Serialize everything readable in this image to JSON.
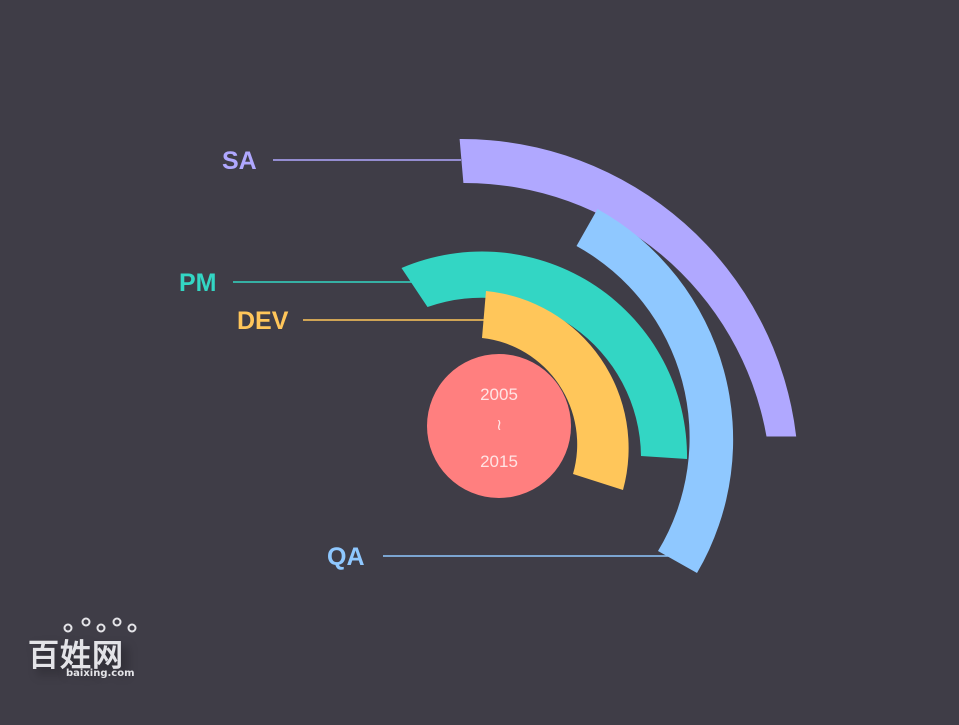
{
  "colors": {
    "background": "#3f3d47",
    "sa": "#b0a8ff",
    "pm": "#33d6c4",
    "dev": "#ffc65a",
    "qa": "#8fc8ff",
    "center": "#ff7f7f"
  },
  "center": {
    "start_year": "2005",
    "separator": "~",
    "end_year": "2015"
  },
  "roles": [
    {
      "key": "sa",
      "label": "SA"
    },
    {
      "key": "pm",
      "label": "PM"
    },
    {
      "key": "dev",
      "label": "DEV"
    },
    {
      "key": "qa",
      "label": "QA"
    }
  ],
  "watermark": {
    "brand": "百姓网",
    "domain": "baixing.com"
  }
}
